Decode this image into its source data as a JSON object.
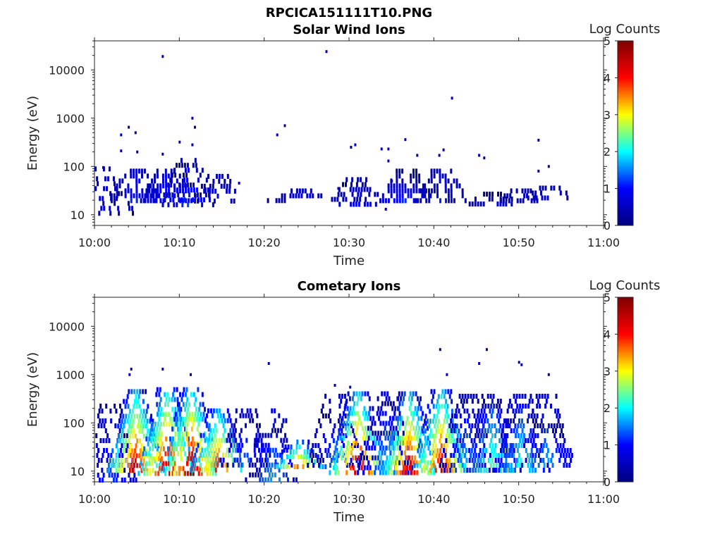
{
  "figure": {
    "file_title": "RPCICA151111T10.PNG"
  },
  "colorscale": {
    "name": "jet",
    "stops": [
      "#00007f",
      "#0000ff",
      "#00ffff",
      "#ffff00",
      "#ff0000",
      "#7f0000"
    ]
  },
  "chart_data": [
    {
      "type": "heatmap",
      "title": "Solar Wind Ions",
      "xlabel": "Time",
      "ylabel": "Energy (eV)",
      "x_scale": "time",
      "y_scale": "log",
      "xlim": [
        "10:00",
        "11:00"
      ],
      "ylim": [
        6,
        40000
      ],
      "x_tick_labels": [
        "10:00",
        "10:10",
        "10:20",
        "10:30",
        "10:40",
        "10:50",
        "11:00"
      ],
      "y_tick_values": [
        10,
        100,
        1000,
        10000
      ],
      "y_tick_labels": [
        "10",
        "100",
        "1000",
        "10000"
      ],
      "colorbar": {
        "label": "Log Counts",
        "range": [
          0,
          5
        ],
        "tick_labels": [
          "0",
          "1",
          "2",
          "3",
          "4",
          "5"
        ]
      },
      "grid": false,
      "seed": 7,
      "clusters": [
        {
          "t": 1.2,
          "e_min": 12,
          "e_max": 100,
          "density": 0.3,
          "level": 0.15
        },
        {
          "t": 4.7,
          "e_min": 18,
          "e_max": 90,
          "density": 0.55,
          "level": 0.25
        },
        {
          "t": 8.5,
          "e_min": 18,
          "e_max": 90,
          "density": 0.55,
          "level": 0.25
        },
        {
          "t": 11.0,
          "e_min": 18,
          "e_max": 150,
          "density": 0.45,
          "level": 0.25
        },
        {
          "t": 14.5,
          "e_min": 18,
          "e_max": 70,
          "density": 0.45,
          "level": 0.2
        },
        {
          "t": 21.2,
          "e_min": 18,
          "e_max": 22,
          "density": 0.7,
          "level": 0.15
        },
        {
          "t": 24.3,
          "e_min": 22,
          "e_max": 35,
          "density": 0.7,
          "level": 0.2
        },
        {
          "t": 30.8,
          "e_min": 18,
          "e_max": 60,
          "density": 0.45,
          "level": 0.15
        },
        {
          "t": 36.7,
          "e_min": 18,
          "e_max": 90,
          "density": 0.55,
          "level": 0.25
        },
        {
          "t": 40.8,
          "e_min": 18,
          "e_max": 90,
          "density": 0.55,
          "level": 0.25
        },
        {
          "t": 47.0,
          "e_min": 18,
          "e_max": 30,
          "density": 0.6,
          "level": 0.15
        },
        {
          "t": 50.2,
          "e_min": 18,
          "e_max": 35,
          "density": 0.6,
          "level": 0.15
        },
        {
          "t": 53.6,
          "e_min": 22,
          "e_max": 40,
          "density": 0.45,
          "level": 0.15
        }
      ],
      "points": [
        {
          "t": 1.0,
          "e": 95
        },
        {
          "t": 3.1,
          "e": 450
        },
        {
          "t": 3.1,
          "e": 210
        },
        {
          "t": 4.0,
          "e": 650
        },
        {
          "t": 4.8,
          "e": 500
        },
        {
          "t": 5.0,
          "e": 200
        },
        {
          "t": 8.0,
          "e": 19000
        },
        {
          "t": 8.0,
          "e": 180
        },
        {
          "t": 10.0,
          "e": 320
        },
        {
          "t": 11.5,
          "e": 1000
        },
        {
          "t": 11.8,
          "e": 650
        },
        {
          "t": 11.5,
          "e": 280
        },
        {
          "t": 17.0,
          "e": 45
        },
        {
          "t": 21.5,
          "e": 450
        },
        {
          "t": 22.4,
          "e": 700
        },
        {
          "t": 27.3,
          "e": 24000
        },
        {
          "t": 28.7,
          "e": 35
        },
        {
          "t": 30.2,
          "e": 250
        },
        {
          "t": 30.7,
          "e": 280
        },
        {
          "t": 33.8,
          "e": 230
        },
        {
          "t": 34.6,
          "e": 230
        },
        {
          "t": 34.6,
          "e": 130
        },
        {
          "t": 35.0,
          "e": 50
        },
        {
          "t": 34.3,
          "e": 13
        },
        {
          "t": 36.6,
          "e": 360
        },
        {
          "t": 38.0,
          "e": 170
        },
        {
          "t": 40.6,
          "e": 170
        },
        {
          "t": 41.1,
          "e": 220
        },
        {
          "t": 42.1,
          "e": 2600
        },
        {
          "t": 45.3,
          "e": 170
        },
        {
          "t": 45.9,
          "e": 150
        },
        {
          "t": 52.3,
          "e": 350
        },
        {
          "t": 52.3,
          "e": 80
        },
        {
          "t": 53.5,
          "e": 100
        }
      ]
    },
    {
      "type": "heatmap",
      "title": "Cometary Ions",
      "xlabel": "Time",
      "ylabel": "Energy (eV)",
      "x_scale": "time",
      "y_scale": "log",
      "xlim": [
        "10:00",
        "11:00"
      ],
      "ylim": [
        6,
        40000
      ],
      "x_tick_labels": [
        "10:00",
        "10:10",
        "10:20",
        "10:30",
        "10:40",
        "10:50",
        "11:00"
      ],
      "y_tick_values": [
        10,
        100,
        1000,
        10000
      ],
      "y_tick_labels": [
        "10",
        "100",
        "1000",
        "10000"
      ],
      "colorbar": {
        "label": "Log Counts",
        "range": [
          0,
          5
        ],
        "tick_labels": [
          "0",
          "1",
          "2",
          "3",
          "4",
          "5"
        ]
      },
      "grid": false,
      "seed": 19,
      "clusters": [
        {
          "t": 1.8,
          "e_min": 6,
          "e_max": 250,
          "density": 0.45,
          "level": 0.25
        },
        {
          "t": 4.8,
          "e_min": 10,
          "e_max": 500,
          "density": 0.6,
          "level": 0.9
        },
        {
          "t": 8.5,
          "e_min": 10,
          "e_max": 550,
          "density": 0.6,
          "level": 0.95
        },
        {
          "t": 11.3,
          "e_min": 10,
          "e_max": 550,
          "density": 0.6,
          "level": 0.95
        },
        {
          "t": 14.5,
          "e_min": 10,
          "e_max": 200,
          "density": 0.55,
          "level": 0.85
        },
        {
          "t": 17.8,
          "e_min": 12,
          "e_max": 200,
          "density": 0.4,
          "level": 0.3
        },
        {
          "t": 21.0,
          "e_min": 6,
          "e_max": 200,
          "density": 0.45,
          "level": 0.35
        },
        {
          "t": 24.0,
          "e_min": 12,
          "e_max": 45,
          "density": 0.6,
          "level": 0.8
        },
        {
          "t": 28.3,
          "e_min": 12,
          "e_max": 400,
          "density": 0.4,
          "level": 0.3
        },
        {
          "t": 31.0,
          "e_min": 10,
          "e_max": 450,
          "density": 0.6,
          "level": 0.95
        },
        {
          "t": 34.3,
          "e_min": 10,
          "e_max": 450,
          "density": 0.5,
          "level": 0.35
        },
        {
          "t": 37.0,
          "e_min": 10,
          "e_max": 450,
          "density": 0.6,
          "level": 0.9
        },
        {
          "t": 40.8,
          "e_min": 10,
          "e_max": 500,
          "density": 0.6,
          "level": 0.9
        },
        {
          "t": 43.8,
          "e_min": 10,
          "e_max": 400,
          "density": 0.45,
          "level": 0.35
        },
        {
          "t": 46.8,
          "e_min": 10,
          "e_max": 400,
          "density": 0.55,
          "level": 0.5
        },
        {
          "t": 50.2,
          "e_min": 10,
          "e_max": 400,
          "density": 0.5,
          "level": 0.45
        },
        {
          "t": 53.2,
          "e_min": 12,
          "e_max": 400,
          "density": 0.5,
          "level": 0.35
        }
      ],
      "points": [
        {
          "t": 4.3,
          "e": 1300
        },
        {
          "t": 4.1,
          "e": 1000
        },
        {
          "t": 8.0,
          "e": 1300
        },
        {
          "t": 11.3,
          "e": 1000
        },
        {
          "t": 20.5,
          "e": 1700
        },
        {
          "t": 28.3,
          "e": 600
        },
        {
          "t": 30.1,
          "e": 550
        },
        {
          "t": 40.7,
          "e": 3300
        },
        {
          "t": 41.5,
          "e": 1000
        },
        {
          "t": 45.3,
          "e": 1700
        },
        {
          "t": 46.2,
          "e": 3300
        },
        {
          "t": 50.0,
          "e": 1800
        },
        {
          "t": 50.3,
          "e": 1600
        },
        {
          "t": 53.5,
          "e": 1000
        }
      ]
    }
  ]
}
